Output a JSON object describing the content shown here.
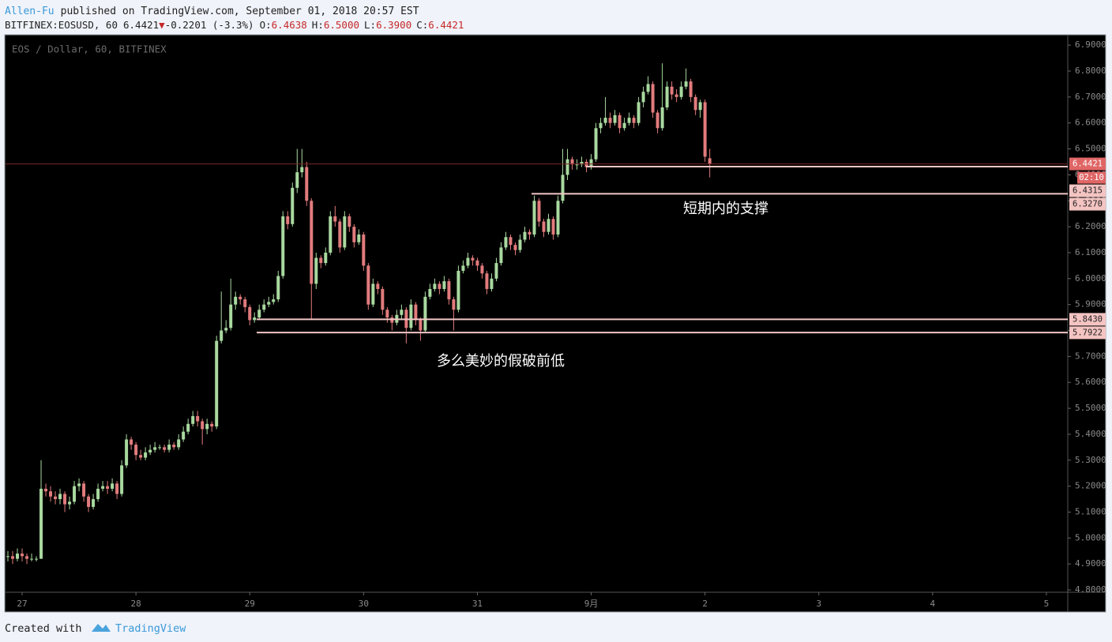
{
  "header": {
    "author": "Allen-Fu",
    "published": "published on TradingView.com, September 01, 2018 20:57 EST",
    "symbol": "BITFINEX:EOSUSD, 60",
    "last": "6.4421",
    "arrow": "▼",
    "change": "-0.2201 (-3.3%)",
    "ohlc": [
      {
        "key": "O:",
        "value": "6.4638"
      },
      {
        "key": "H:",
        "value": "6.5000"
      },
      {
        "key": "L:",
        "value": "6.3900"
      },
      {
        "key": "C:",
        "value": "6.4421"
      }
    ]
  },
  "footer": {
    "created": "Created with",
    "brand": "TradingView"
  },
  "chart_data": {
    "type": "candlestick",
    "legend": "EOS / Dollar, 60, BITFINEX",
    "up_color": "#a9d9a0",
    "down_color": "#e27b7d",
    "grid": false,
    "open": [
      4.93,
      4.93,
      4.92,
      4.94,
      4.93,
      4.92,
      4.92,
      4.92,
      5.19,
      5.18,
      5.16,
      5.15,
      5.17,
      5.13,
      5.14,
      5.2,
      5.21,
      5.16,
      5.12,
      5.15,
      5.19,
      5.2,
      5.19,
      5.21,
      5.17,
      5.28,
      5.38,
      5.36,
      5.32,
      5.31,
      5.33,
      5.34,
      5.35,
      5.35,
      5.34,
      5.36,
      5.35,
      5.38,
      5.41,
      5.44,
      5.47,
      5.45,
      5.42,
      5.44,
      5.43,
      5.76,
      5.8,
      5.81,
      5.9,
      5.93,
      5.92,
      5.89,
      5.84,
      5.85,
      5.88,
      5.9,
      5.91,
      5.92,
      6.01,
      6.24,
      6.21,
      6.35,
      6.41,
      6.43,
      6.3,
      5.98,
      6.08,
      6.06,
      6.1,
      6.24,
      6.22,
      6.12,
      6.24,
      6.2,
      6.14,
      6.17,
      6.05,
      5.9,
      5.98,
      5.96,
      5.88,
      5.85,
      5.83,
      5.86,
      5.88,
      5.81,
      5.9,
      5.84,
      5.8,
      5.93,
      5.96,
      5.98,
      5.96,
      5.99,
      5.92,
      5.88,
      6.03,
      6.05,
      6.08,
      6.07,
      6.05,
      6.02,
      5.96,
      6.0,
      6.06,
      6.12,
      6.16,
      6.13,
      6.11,
      6.15,
      6.18,
      6.17,
      6.3,
      6.22,
      6.18,
      6.23,
      6.17,
      6.3,
      6.4,
      6.46,
      6.44,
      6.44,
      6.45,
      6.43,
      6.46,
      6.58,
      6.6,
      6.62,
      6.6,
      6.63,
      6.58,
      6.6,
      6.62,
      6.6,
      6.68,
      6.72,
      6.75,
      6.64,
      6.58,
      6.66,
      6.74,
      6.71,
      6.7,
      6.74,
      6.76,
      6.7,
      6.65,
      6.68,
      6.4638
    ],
    "high": [
      4.95,
      4.95,
      4.96,
      4.96,
      4.94,
      4.94,
      4.93,
      5.3,
      5.21,
      5.2,
      5.18,
      5.19,
      5.18,
      5.16,
      5.22,
      5.23,
      5.22,
      5.17,
      5.17,
      5.21,
      5.22,
      5.22,
      5.23,
      5.22,
      5.3,
      5.4,
      5.39,
      5.37,
      5.34,
      5.35,
      5.36,
      5.37,
      5.36,
      5.36,
      5.38,
      5.37,
      5.4,
      5.43,
      5.46,
      5.49,
      5.49,
      5.46,
      5.46,
      5.45,
      5.78,
      5.95,
      5.84,
      6.0,
      5.95,
      5.94,
      5.93,
      5.9,
      5.87,
      5.9,
      5.92,
      5.93,
      5.94,
      6.03,
      6.26,
      6.26,
      6.37,
      6.5,
      6.5,
      6.45,
      6.31,
      6.1,
      6.09,
      6.12,
      6.26,
      6.28,
      6.23,
      6.26,
      6.25,
      6.21,
      6.19,
      6.18,
      6.06,
      6.0,
      5.99,
      5.97,
      5.89,
      5.86,
      5.88,
      5.9,
      5.89,
      5.92,
      5.91,
      5.85,
      5.95,
      5.98,
      6.0,
      5.99,
      6.01,
      6.0,
      5.93,
      6.05,
      6.07,
      6.1,
      6.09,
      6.08,
      6.06,
      6.03,
      6.02,
      6.08,
      6.14,
      6.18,
      6.17,
      6.14,
      6.17,
      6.2,
      6.19,
      6.32,
      6.31,
      6.23,
      6.25,
      6.24,
      6.32,
      6.5,
      6.5,
      6.47,
      6.46,
      6.47,
      6.46,
      6.48,
      6.6,
      6.62,
      6.7,
      6.64,
      6.65,
      6.64,
      6.62,
      6.64,
      6.63,
      6.7,
      6.74,
      6.78,
      6.76,
      6.65,
      6.83,
      6.76,
      6.76,
      6.73,
      6.76,
      6.81,
      6.77,
      6.71,
      6.69,
      6.69,
      6.5
    ],
    "low": [
      4.91,
      4.9,
      4.91,
      4.91,
      4.9,
      4.91,
      4.91,
      4.92,
      5.16,
      5.14,
      5.13,
      5.13,
      5.1,
      5.11,
      5.13,
      5.18,
      5.14,
      5.1,
      5.11,
      5.14,
      5.18,
      5.17,
      5.18,
      5.15,
      5.16,
      5.27,
      5.34,
      5.3,
      5.3,
      5.3,
      5.32,
      5.33,
      5.34,
      5.33,
      5.33,
      5.34,
      5.34,
      5.37,
      5.4,
      5.43,
      5.43,
      5.36,
      5.4,
      5.41,
      5.42,
      5.75,
      5.79,
      5.8,
      5.88,
      5.9,
      5.87,
      5.82,
      5.83,
      5.84,
      5.87,
      5.89,
      5.9,
      5.91,
      6.0,
      6.19,
      6.2,
      6.33,
      6.39,
      6.28,
      5.84,
      5.96,
      6.04,
      6.05,
      6.09,
      6.2,
      6.1,
      6.11,
      6.18,
      6.12,
      6.13,
      6.03,
      5.88,
      5.89,
      5.94,
      5.86,
      5.83,
      5.8,
      5.82,
      5.84,
      5.75,
      5.8,
      5.82,
      5.76,
      5.79,
      5.92,
      5.95,
      5.94,
      5.95,
      5.9,
      5.8,
      5.87,
      6.02,
      6.04,
      6.05,
      6.03,
      6.0,
      5.94,
      5.95,
      5.99,
      6.05,
      6.11,
      6.11,
      6.09,
      6.1,
      6.14,
      6.15,
      6.16,
      6.2,
      6.16,
      6.17,
      6.15,
      6.16,
      6.29,
      6.38,
      6.42,
      6.42,
      6.43,
      6.41,
      6.42,
      6.45,
      6.56,
      6.59,
      6.58,
      6.59,
      6.56,
      6.57,
      6.59,
      6.58,
      6.59,
      6.66,
      6.71,
      6.62,
      6.56,
      6.57,
      6.65,
      6.69,
      6.68,
      6.69,
      6.73,
      6.68,
      6.63,
      6.62,
      6.45,
      6.39
    ],
    "close": [
      4.93,
      4.92,
      4.94,
      4.93,
      4.92,
      4.92,
      4.92,
      5.19,
      5.18,
      5.16,
      5.15,
      5.17,
      5.13,
      5.14,
      5.2,
      5.21,
      5.16,
      5.12,
      5.15,
      5.19,
      5.2,
      5.19,
      5.21,
      5.17,
      5.28,
      5.38,
      5.36,
      5.32,
      5.31,
      5.33,
      5.34,
      5.35,
      5.35,
      5.34,
      5.36,
      5.35,
      5.38,
      5.41,
      5.44,
      5.47,
      5.45,
      5.42,
      5.44,
      5.43,
      5.76,
      5.8,
      5.81,
      5.9,
      5.93,
      5.92,
      5.89,
      5.84,
      5.85,
      5.88,
      5.9,
      5.91,
      5.92,
      6.01,
      6.24,
      6.21,
      6.35,
      6.41,
      6.43,
      6.3,
      5.98,
      6.08,
      6.06,
      6.1,
      6.24,
      6.22,
      6.12,
      6.24,
      6.2,
      6.14,
      6.17,
      6.05,
      5.9,
      5.98,
      5.96,
      5.88,
      5.85,
      5.83,
      5.86,
      5.88,
      5.81,
      5.9,
      5.84,
      5.8,
      5.93,
      5.96,
      5.98,
      5.96,
      5.99,
      5.92,
      5.88,
      6.03,
      6.05,
      6.08,
      6.07,
      6.05,
      6.02,
      5.96,
      6.0,
      6.06,
      6.12,
      6.16,
      6.13,
      6.11,
      6.15,
      6.18,
      6.17,
      6.3,
      6.22,
      6.18,
      6.23,
      6.17,
      6.3,
      6.4,
      6.46,
      6.44,
      6.44,
      6.45,
      6.43,
      6.46,
      6.58,
      6.6,
      6.62,
      6.6,
      6.63,
      6.58,
      6.6,
      6.62,
      6.6,
      6.68,
      6.72,
      6.75,
      6.64,
      6.58,
      6.66,
      6.74,
      6.71,
      6.7,
      6.74,
      6.76,
      6.7,
      6.65,
      6.68,
      6.47,
      6.4421
    ],
    "xlim": [
      -0.5,
      223.5
    ],
    "xticks": [
      {
        "value": 3,
        "label": "27"
      },
      {
        "value": 27,
        "label": "28"
      },
      {
        "value": 51,
        "label": "29"
      },
      {
        "value": 75,
        "label": "30"
      },
      {
        "value": 99,
        "label": "31"
      },
      {
        "value": 123,
        "label": "9月"
      },
      {
        "value": 147,
        "label": "2"
      },
      {
        "value": 171,
        "label": "3"
      },
      {
        "value": 195,
        "label": "4"
      },
      {
        "value": 219,
        "label": "5"
      }
    ],
    "ylim": [
      4.791,
      6.94
    ],
    "yticks": [
      {
        "value": 4.8,
        "label": "4.8000"
      },
      {
        "value": 4.9,
        "label": "4.9000"
      },
      {
        "value": 5.0,
        "label": "5.0000"
      },
      {
        "value": 5.1,
        "label": "5.1000"
      },
      {
        "value": 5.2,
        "label": "5.2000"
      },
      {
        "value": 5.3,
        "label": "5.3000"
      },
      {
        "value": 5.4,
        "label": "5.4000"
      },
      {
        "value": 5.5,
        "label": "5.5000"
      },
      {
        "value": 5.6,
        "label": "5.6000"
      },
      {
        "value": 5.7,
        "label": "5.7000"
      },
      {
        "value": 5.8,
        "label": "5.8000"
      },
      {
        "value": 5.9,
        "label": "5.9000"
      },
      {
        "value": 6.0,
        "label": "6.0000"
      },
      {
        "value": 6.1,
        "label": "6.1000"
      },
      {
        "value": 6.2,
        "label": "6.2000"
      },
      {
        "value": 6.3,
        "label": "6.3000"
      },
      {
        "value": 6.4,
        "label": "6.4000"
      },
      {
        "value": 6.5,
        "label": "6.5000"
      },
      {
        "value": 6.6,
        "label": "6.6000"
      },
      {
        "value": 6.7,
        "label": "6.7000"
      },
      {
        "value": 6.8,
        "label": "6.8000"
      },
      {
        "value": 6.9,
        "label": "6.9000"
      }
    ],
    "last_price": {
      "value": 6.4421,
      "label": "6.4421",
      "countdown": "02:10"
    },
    "levels": [
      {
        "value": 6.4315,
        "label": "6.4315"
      },
      {
        "value": 6.327,
        "label": "6.3270"
      },
      {
        "value": 5.843,
        "label": "5.8430"
      },
      {
        "value": 5.7922,
        "label": "5.7922"
      }
    ],
    "annotations": [
      "短期内的支撑",
      "多么美妙的假破前低"
    ]
  }
}
